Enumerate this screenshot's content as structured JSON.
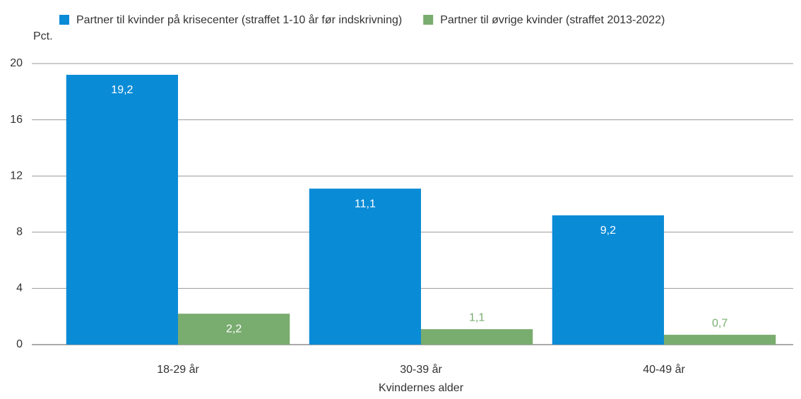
{
  "chart_data": {
    "type": "bar",
    "y_label": "Pct.",
    "x_label": "Kvindernes alder",
    "categories": [
      "18-29 år",
      "30-39 år",
      "40-49 år"
    ],
    "series": [
      {
        "name": "Partner til kvinder på krisecenter (straffet 1-10 år før indskrivning)",
        "color": "#0a8bd6",
        "values": [
          19.2,
          11.1,
          9.2
        ],
        "value_labels": [
          "19,2",
          "11,1",
          "9,2"
        ]
      },
      {
        "name": "Partner til øvrige kvinder (straffet 2013-2022)",
        "color": "#79ac6f",
        "values": [
          2.2,
          1.1,
          0.7
        ],
        "value_labels": [
          "2,2",
          "1,1",
          "0,7"
        ]
      }
    ],
    "ylim": [
      0,
      20
    ],
    "yticks": [
      0,
      4,
      8,
      12,
      16,
      20
    ],
    "grid": true,
    "legend": "top"
  }
}
